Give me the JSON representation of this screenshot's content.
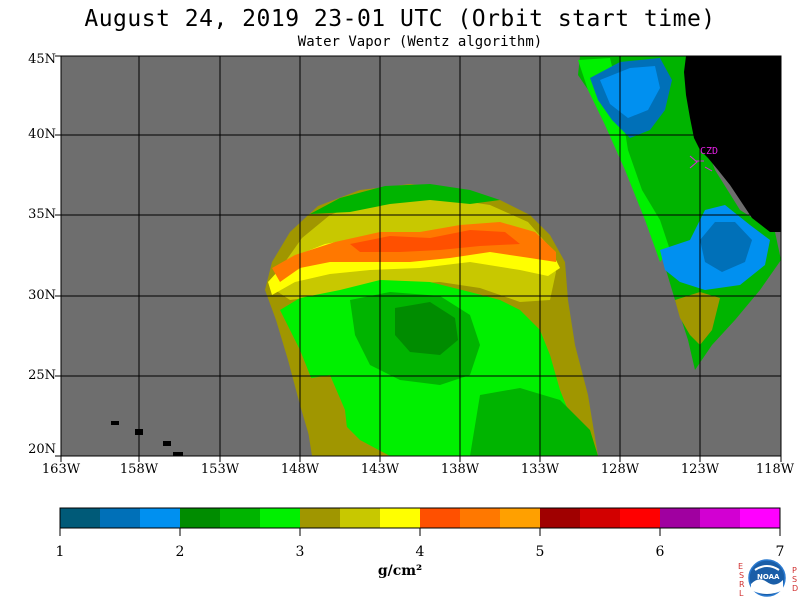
{
  "title": "August 24, 2019  23-01 UTC  (Orbit start time)",
  "subtitle": "Water Vapor (Wentz algorithm)",
  "map": {
    "lat_labels": [
      "45N",
      "40N",
      "35N",
      "30N",
      "25N",
      "20N"
    ],
    "lon_labels": [
      "163W",
      "158W",
      "153W",
      "148W",
      "143W",
      "138W",
      "133W",
      "128W",
      "123W",
      "118W"
    ],
    "station_label": "CZD",
    "colors": {
      "ocean_missing": "#6e6e6e",
      "land": "#000000",
      "grid": "#000000",
      "station": "#e020e0"
    }
  },
  "colorbar": {
    "colors": [
      "#005a78",
      "#0070b8",
      "#0090f0",
      "#008c00",
      "#00b400",
      "#00f000",
      "#a09600",
      "#c8c800",
      "#ffff00",
      "#ff5000",
      "#ff7800",
      "#ffa000",
      "#a00000",
      "#d20000",
      "#ff0000",
      "#a000a0",
      "#d200d2",
      "#ff00ff"
    ],
    "tick_labels": [
      "1",
      "2",
      "3",
      "4",
      "5",
      "6",
      "7"
    ],
    "units": "g/cm²"
  },
  "logo": {
    "left_letters": [
      "E",
      "S",
      "R",
      "L"
    ],
    "right_letters": [
      "P",
      "S",
      "D"
    ],
    "center_text": "NOAA"
  }
}
